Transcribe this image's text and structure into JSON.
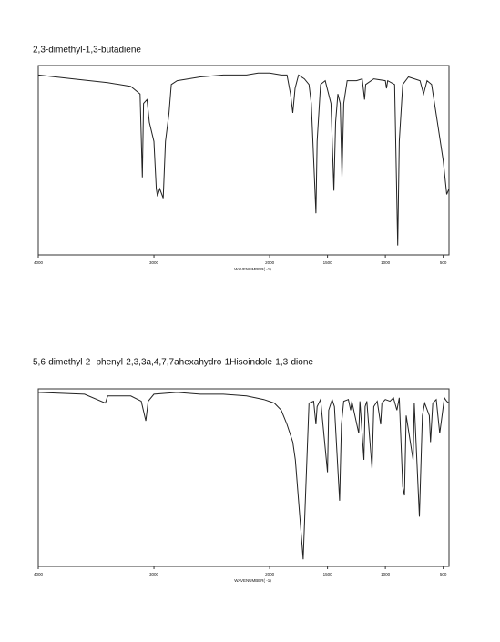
{
  "chart_data": [
    {
      "type": "line",
      "title": "2,3-dimethyl-1,3-butadiene",
      "x_label": "WAVENUMBER( -1)",
      "xlim": [
        4000,
        450
      ],
      "ylim": [
        0,
        100
      ],
      "xticks": [
        4000,
        3000,
        2000,
        1500,
        1000,
        500
      ],
      "series": [
        {
          "color": "#222222",
          "x": [
            4000,
            3700,
            3400,
            3200,
            3120,
            3100,
            3090,
            3060,
            3040,
            3000,
            2980,
            2970,
            2950,
            2920,
            2900,
            2870,
            2850,
            2800,
            2600,
            2400,
            2200,
            2100,
            2000,
            1900,
            1850,
            1820,
            1800,
            1780,
            1750,
            1700,
            1660,
            1640,
            1600,
            1590,
            1560,
            1520,
            1470,
            1445,
            1430,
            1410,
            1390,
            1375,
            1360,
            1330,
            1250,
            1200,
            1180,
            1170,
            1100,
            1000,
            990,
            980,
            920,
            893,
            880,
            850,
            800,
            700,
            670,
            640,
            600,
            550,
            500,
            470,
            450
          ],
          "values": [
            95,
            93,
            91,
            89,
            85,
            41,
            80,
            82,
            70,
            60,
            35,
            31,
            35,
            30,
            60,
            75,
            90,
            92,
            94,
            95,
            95,
            96,
            96,
            95,
            95,
            85,
            75,
            88,
            95,
            93,
            90,
            80,
            22,
            60,
            90,
            92,
            80,
            34,
            70,
            85,
            80,
            41,
            80,
            92,
            92,
            93,
            82,
            90,
            93,
            92,
            88,
            92,
            90,
            5,
            60,
            90,
            94,
            92,
            85,
            92,
            90,
            70,
            50,
            32,
            35
          ]
        }
      ]
    },
    {
      "type": "line",
      "title": "5,6-dimethyl-2- phenyl-2,3,3a,4,7,7ahexahydro-1Hisoindole-1,3-dione",
      "x_label": "WAVENUMBER( -1)",
      "xlim": [
        4000,
        450
      ],
      "ylim": [
        0,
        100
      ],
      "xticks": [
        4000,
        3000,
        2000,
        1500,
        1000,
        500
      ],
      "series": [
        {
          "color": "#222222",
          "x": [
            4000,
            3600,
            3420,
            3400,
            3200,
            3110,
            3070,
            3050,
            3000,
            2800,
            2600,
            2400,
            2200,
            2050,
            1960,
            1900,
            1850,
            1800,
            1778,
            1710,
            1690,
            1660,
            1620,
            1600,
            1590,
            1560,
            1500,
            1490,
            1460,
            1440,
            1395,
            1380,
            1360,
            1320,
            1300,
            1290,
            1230,
            1220,
            1185,
            1175,
            1160,
            1115,
            1100,
            1070,
            1040,
            1030,
            1000,
            960,
            930,
            900,
            880,
            850,
            835,
            820,
            760,
            750,
            706,
            680,
            660,
            620,
            610,
            590,
            560,
            530,
            510,
            490,
            470,
            450
          ],
          "values": [
            98,
            97,
            92,
            96,
            96,
            93,
            82,
            93,
            97,
            98,
            97,
            97,
            96,
            94,
            92,
            88,
            80,
            70,
            60,
            4,
            40,
            92,
            93,
            80,
            90,
            94,
            53,
            88,
            94,
            90,
            37,
            80,
            93,
            94,
            88,
            93,
            75,
            93,
            60,
            90,
            93,
            55,
            90,
            93,
            80,
            92,
            94,
            93,
            95,
            88,
            95,
            45,
            40,
            85,
            60,
            92,
            28,
            85,
            92,
            85,
            70,
            92,
            94,
            75,
            85,
            95,
            93,
            92
          ]
        }
      ]
    }
  ]
}
